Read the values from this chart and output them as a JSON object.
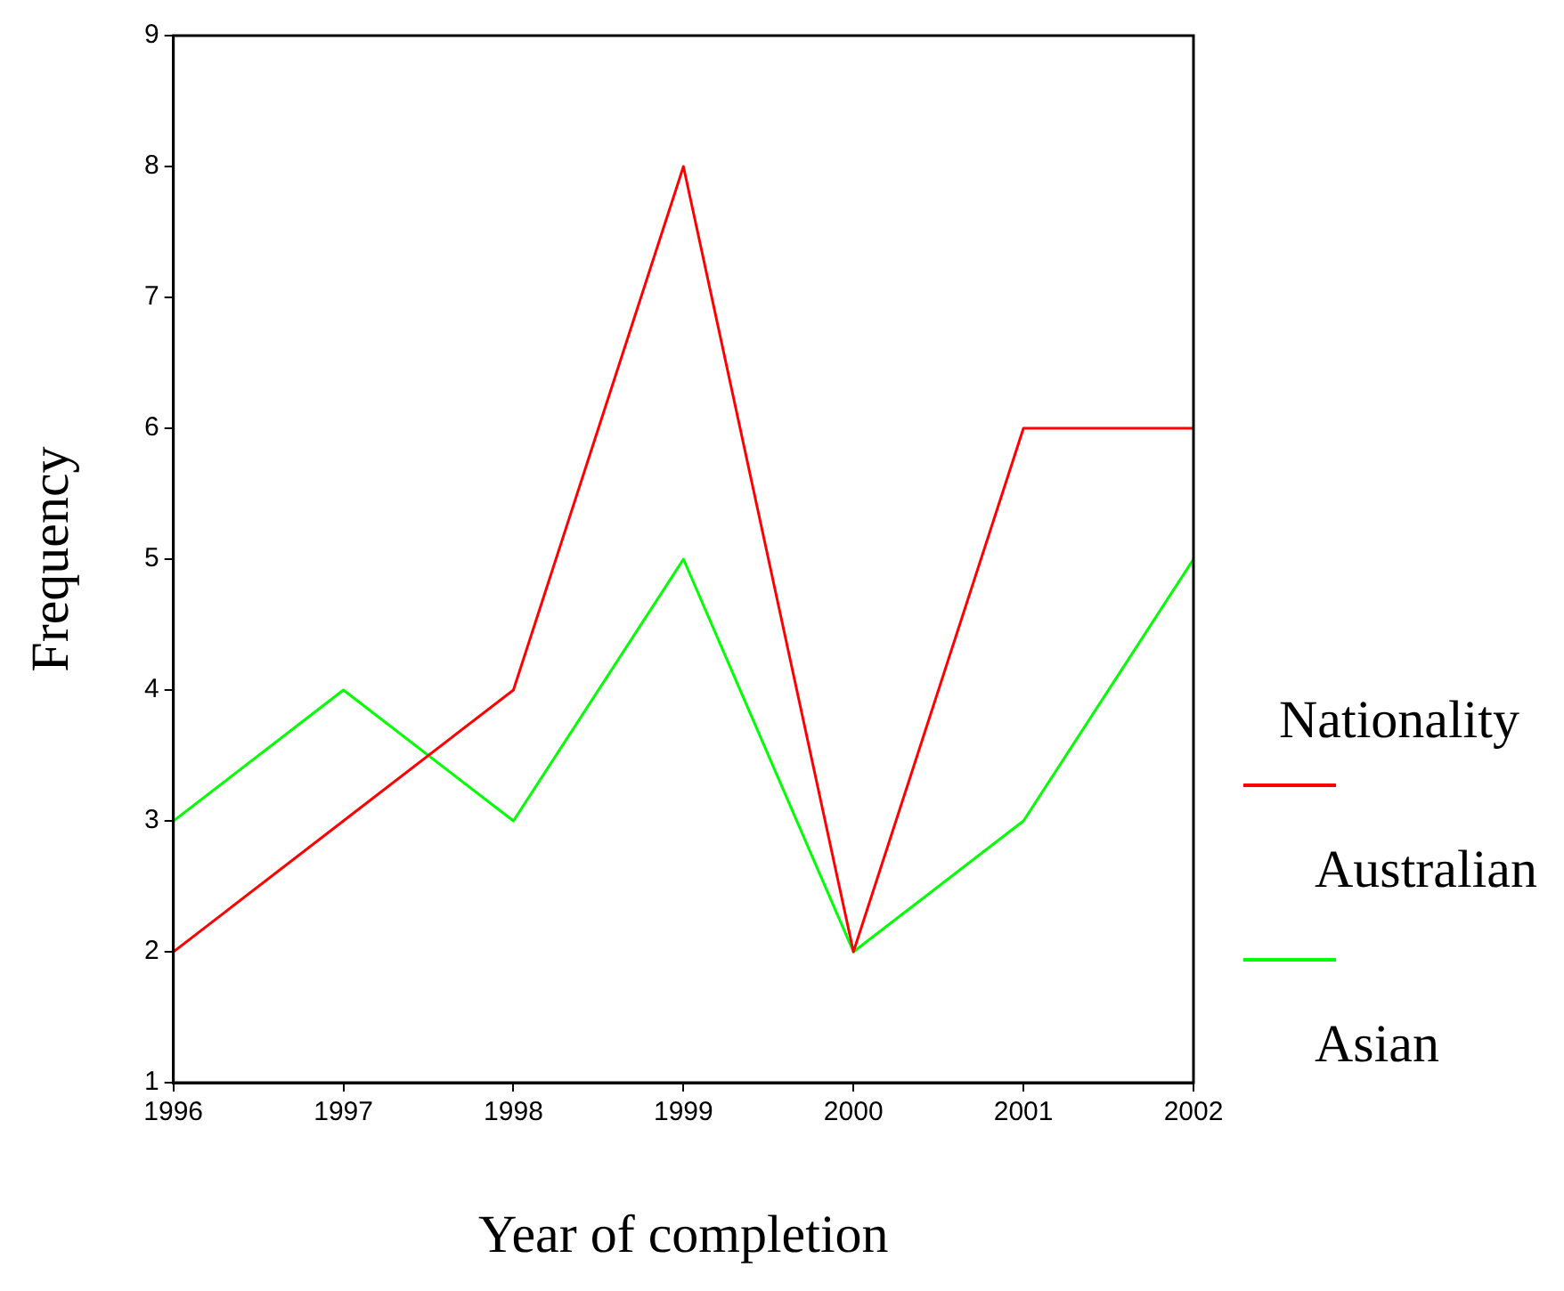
{
  "chart_data": {
    "type": "line",
    "xlabel": "Year of completion",
    "ylabel": "Frequency",
    "legend_title": "Nationality",
    "legend": "right",
    "x": [
      1996,
      1997,
      1998,
      1999,
      2000,
      2001,
      2002
    ],
    "xlim": [
      1996,
      2002
    ],
    "xticks": [
      1996,
      1997,
      1998,
      1999,
      2000,
      2001,
      2002
    ],
    "ylim": [
      1,
      9
    ],
    "yticks": [
      1,
      2,
      3,
      4,
      5,
      6,
      7,
      8,
      9
    ],
    "marker": "none",
    "line_style": "solid",
    "series": [
      {
        "name": "Australian",
        "color": "#ff0000",
        "values": [
          2,
          3,
          4,
          8,
          2,
          6,
          6
        ]
      },
      {
        "name": "Asian",
        "color": "#00ff00",
        "values": [
          3,
          4,
          3,
          5,
          2,
          3,
          5
        ]
      }
    ]
  }
}
